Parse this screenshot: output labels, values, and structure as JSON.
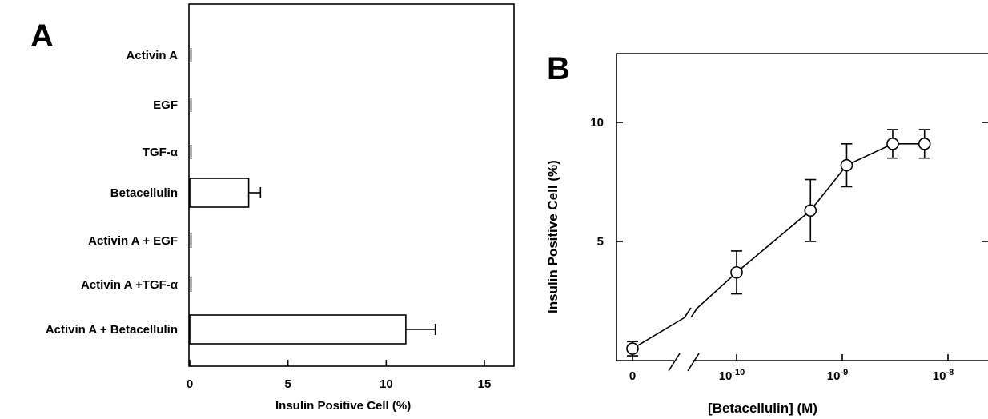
{
  "chart_data": [
    {
      "panel": "A",
      "type": "bar",
      "orientation": "horizontal",
      "categories": [
        "Activin A",
        "EGF",
        "TGF-α",
        "Betacellulin",
        "Activin A + EGF",
        "Activin A +TGF-α",
        "Activin A + Betacellulin"
      ],
      "values": [
        0,
        0,
        0,
        3.0,
        0,
        0,
        11.0
      ],
      "errors": [
        0,
        0,
        0,
        0.6,
        0,
        0,
        1.5
      ],
      "xlabel": "Insulin Positive Cell (%)",
      "xlim": [
        0,
        16
      ],
      "xticks": [
        0,
        5,
        10,
        15
      ],
      "xtick_labels": [
        "0",
        "5",
        "10",
        "15"
      ]
    },
    {
      "panel": "B",
      "type": "line",
      "markers": "open-circle",
      "xlabel": "[Betacellulin] (M)",
      "ylabel": "Insulin Positive Cell (%)",
      "x_scale": "log (with axis break after 0)",
      "x_ticks": [
        "0",
        "10-10",
        "10-9",
        "10-8"
      ],
      "x": [
        0,
        1e-10,
        5e-10,
        1.1e-09,
        3e-09,
        6e-09
      ],
      "y": [
        0.5,
        3.7,
        6.3,
        8.2,
        9.1,
        9.1
      ],
      "y_err": [
        0.3,
        0.9,
        1.3,
        0.9,
        0.6,
        0.6
      ],
      "ylim": [
        0,
        13
      ],
      "yticks": [
        5,
        10
      ],
      "ytick_labels": [
        "5",
        "10"
      ],
      "axis_break": true
    }
  ],
  "labels": {
    "panel_a": "A",
    "panel_b": "B",
    "a_xlabel": "Insulin Positive Cell (%)",
    "b_xlabel": "[Betacellulin] (M)",
    "b_ylabel": "Insulin Positive Cell (%)",
    "b_x0": "0"
  }
}
